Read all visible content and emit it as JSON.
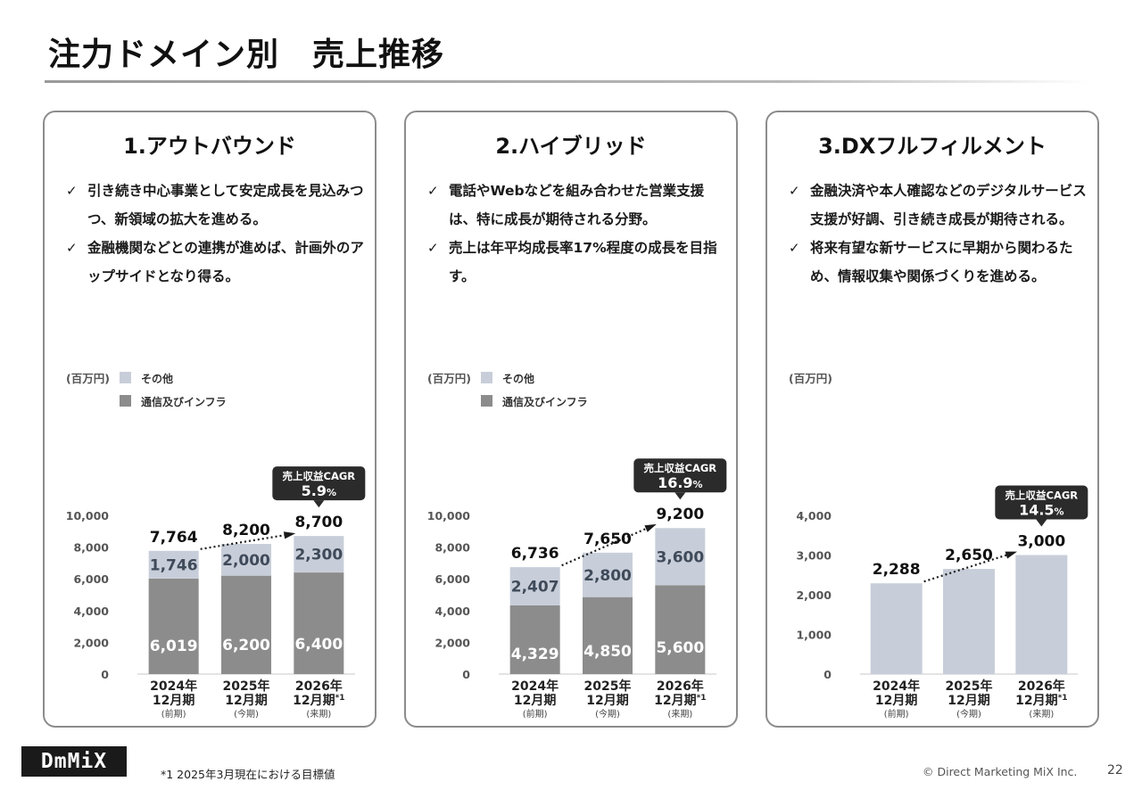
{
  "page": {
    "title": "注力ドメイン別　売上推移",
    "footnote": "*1  2025年3月現在における目標値",
    "copyright": "© Direct Marketing MiX Inc.",
    "page_number": "22",
    "logo_text": "DmMiX"
  },
  "panels": [
    {
      "title": "1.アウトバウンド",
      "bullets": [
        "引き続き中心事業として安定成長を見込みつつ、新領域の拡大を進める。",
        "金融機関などとの連携が進めば、計画外のアップサイドとなり得る。"
      ]
    },
    {
      "title": "2.ハイブリッド",
      "bullets": [
        "電話やWebなどを組み合わせた営業支援は、特に成長が期待される分野。",
        "売上は年平均成長率17%程度の成長を目指す。"
      ]
    },
    {
      "title": "3.DXフルフィルメント",
      "bullets": [
        "金融決済や本人確認などのデジタルサービス支援が好調、引き続き成長が期待される。",
        "将来有望な新サービスに早期から関わるため、情報収集や関係づくりを進める。"
      ]
    }
  ],
  "colors": {
    "bottom_series": "#8c8c8c",
    "top_series": "#c8ced9",
    "callout": "#2b2b2b",
    "label_dark": "#3f4a5a"
  },
  "chart_data": [
    {
      "type": "bar",
      "stacked": true,
      "unit_label": "(百万円)",
      "categories": [
        {
          "year": "2024年",
          "period": "12月期",
          "note": "(前期)",
          "mark": ""
        },
        {
          "year": "2025年",
          "period": "12月期",
          "note": "(今期)",
          "mark": ""
        },
        {
          "year": "2026年",
          "period": "12月期",
          "note": "(来期)",
          "mark": "*1"
        }
      ],
      "series": [
        {
          "name": "通信及びインフラ",
          "values": [
            6019,
            6200,
            6400
          ]
        },
        {
          "name": "その他",
          "values": [
            1746,
            2000,
            2300
          ]
        }
      ],
      "totals": [
        7764,
        8200,
        8700
      ],
      "ylim": [
        0,
        10000
      ],
      "yticks": [
        0,
        2000,
        4000,
        6000,
        8000,
        10000
      ],
      "legend": "top-left",
      "cagr_label": "売上収益CAGR",
      "cagr_value": "5.9",
      "cagr_unit": "%"
    },
    {
      "type": "bar",
      "stacked": true,
      "unit_label": "(百万円)",
      "categories": [
        {
          "year": "2024年",
          "period": "12月期",
          "note": "(前期)",
          "mark": ""
        },
        {
          "year": "2025年",
          "period": "12月期",
          "note": "(今期)",
          "mark": ""
        },
        {
          "year": "2026年",
          "period": "12月期",
          "note": "(来期)",
          "mark": "*1"
        }
      ],
      "series": [
        {
          "name": "通信及びインフラ",
          "values": [
            4329,
            4850,
            5600
          ]
        },
        {
          "name": "その他",
          "values": [
            2407,
            2800,
            3600
          ]
        }
      ],
      "totals": [
        6736,
        7650,
        9200
      ],
      "ylim": [
        0,
        10000
      ],
      "yticks": [
        0,
        2000,
        4000,
        6000,
        8000,
        10000
      ],
      "legend": "top-left",
      "cagr_label": "売上収益CAGR",
      "cagr_value": "16.9",
      "cagr_unit": "%"
    },
    {
      "type": "bar",
      "stacked": false,
      "unit_label": "(百万円)",
      "categories": [
        {
          "year": "2024年",
          "period": "12月期",
          "note": "(前期)",
          "mark": ""
        },
        {
          "year": "2025年",
          "period": "12月期",
          "note": "(今期)",
          "mark": ""
        },
        {
          "year": "2026年",
          "period": "12月期",
          "note": "(来期)",
          "mark": "*1"
        }
      ],
      "series": [
        {
          "name": "",
          "values": [
            2288,
            2650,
            3000
          ]
        }
      ],
      "totals": [
        2288,
        2650,
        3000
      ],
      "ylim": [
        0,
        4000
      ],
      "yticks": [
        0,
        1000,
        2000,
        3000,
        4000
      ],
      "legend": "none",
      "cagr_label": "売上収益CAGR",
      "cagr_value": "14.5",
      "cagr_unit": "%"
    }
  ]
}
